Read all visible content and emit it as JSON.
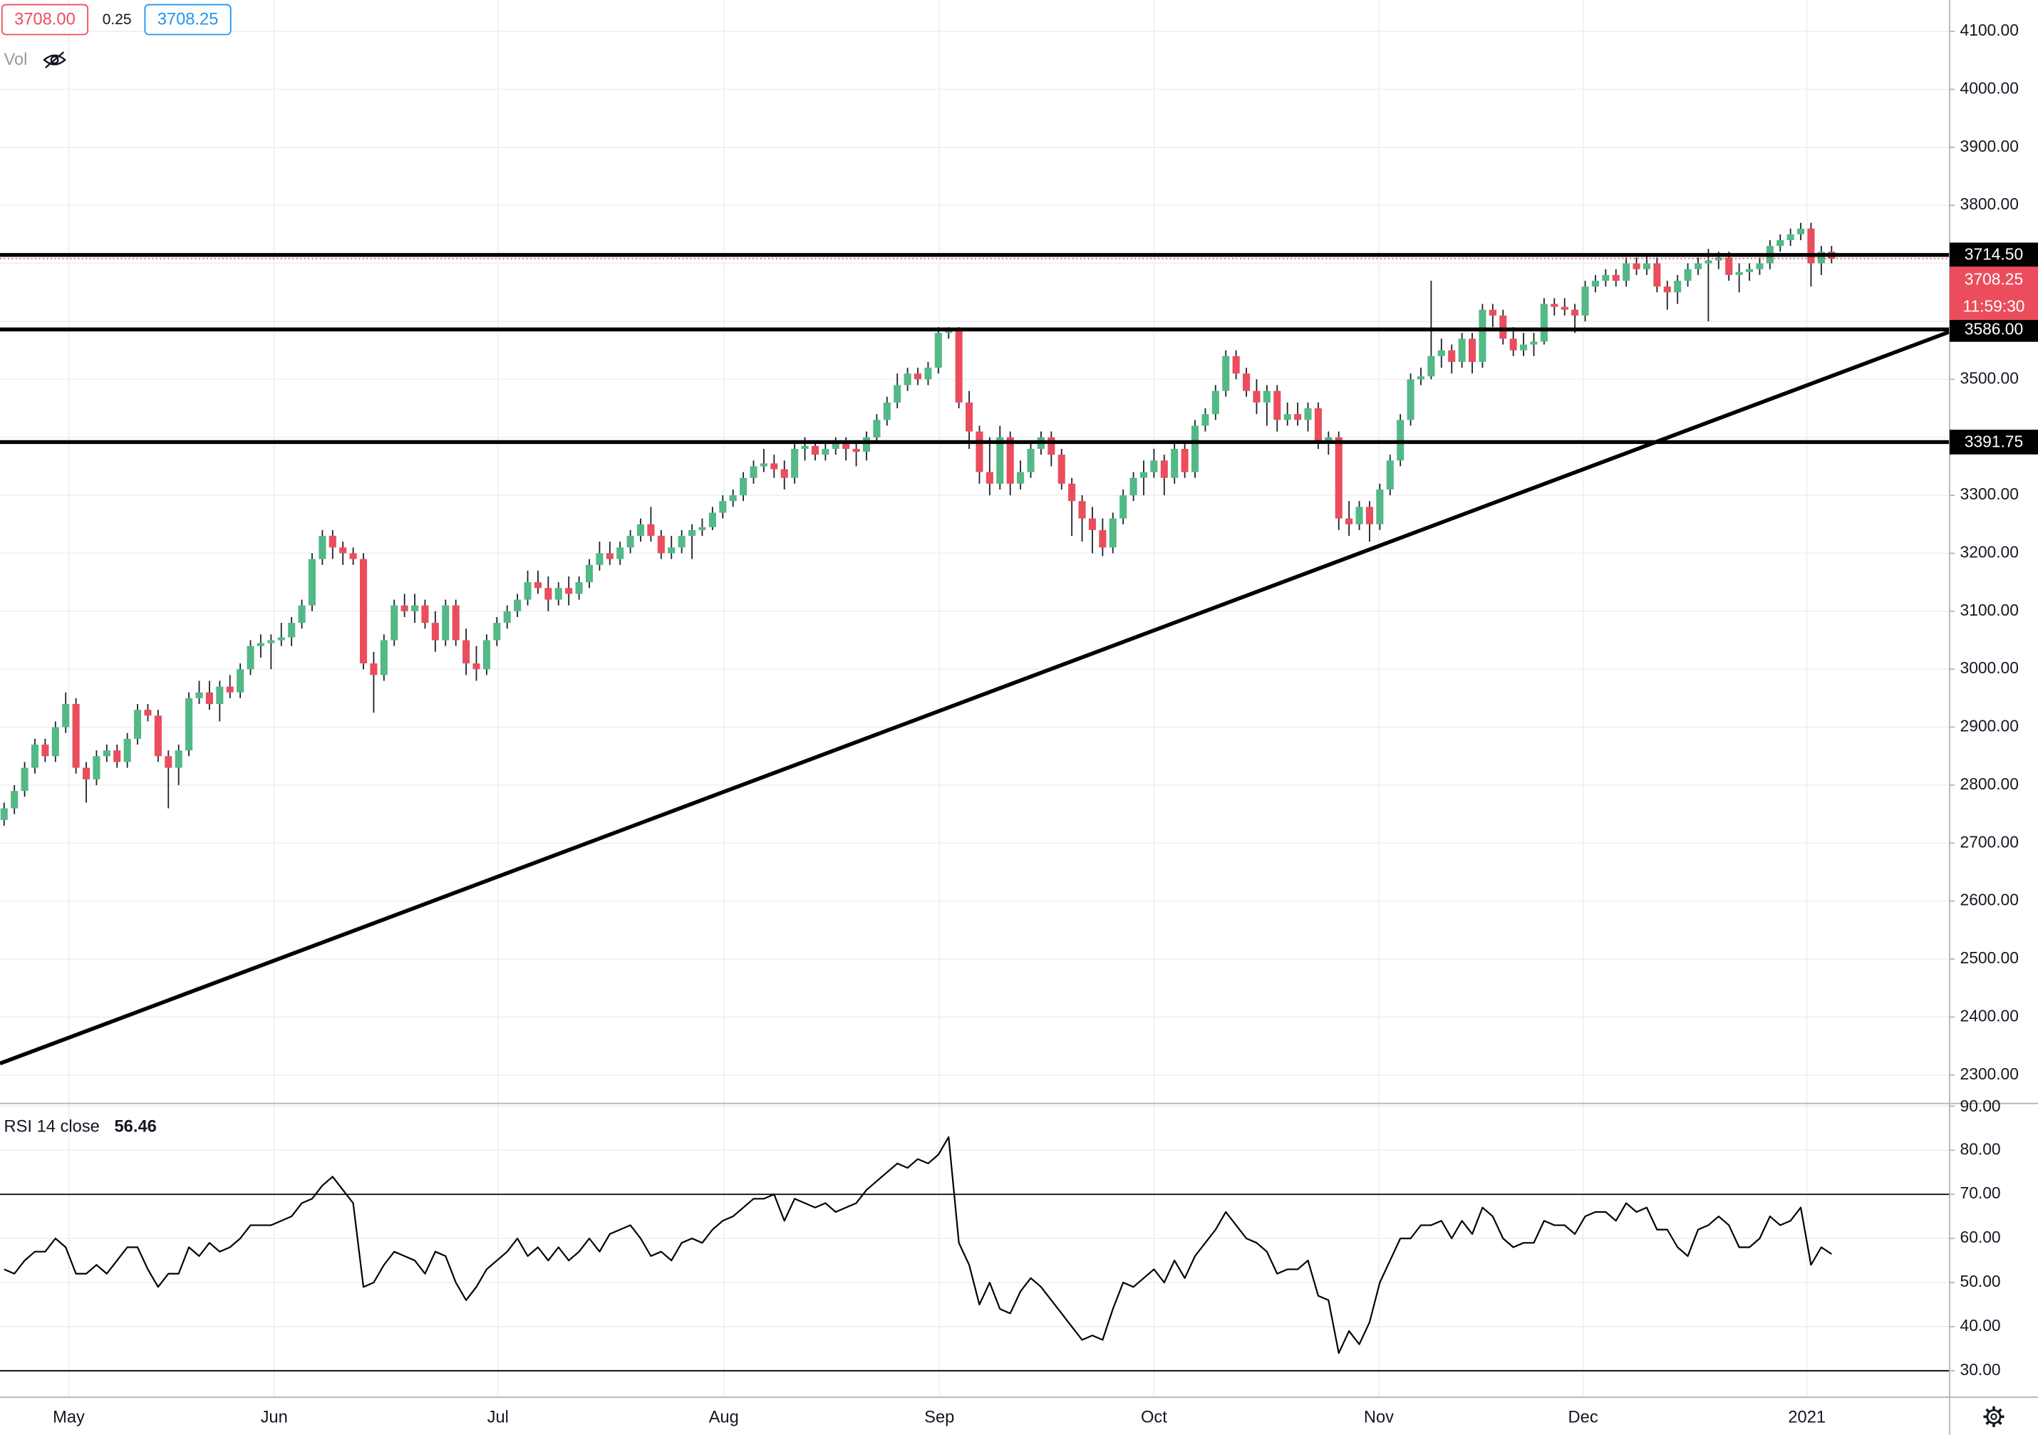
{
  "header": {
    "last": "3708.00",
    "spread": "0.25",
    "ask": "3708.25",
    "volume_label": "Vol"
  },
  "chart_data": [
    {
      "type": "candlestick",
      "xlim": [
        -0.4,
        189.5
      ],
      "xticks": [
        {
          "value": 6.3,
          "label": "May"
        },
        {
          "value": 26.3,
          "label": "Jun"
        },
        {
          "value": 48.1,
          "label": "Jul"
        },
        {
          "value": 70.1,
          "label": "Aug"
        },
        {
          "value": 91.1,
          "label": "Sep"
        },
        {
          "value": 112,
          "label": "Oct"
        },
        {
          "value": 133.9,
          "label": "Nov"
        },
        {
          "value": 153.8,
          "label": "Dec"
        },
        {
          "value": 175.6,
          "label": "2021"
        }
      ],
      "ylim": [
        2251,
        4154
      ],
      "yticks": [
        {
          "value": 2300,
          "label": "2300.00"
        },
        {
          "value": 2400,
          "label": "2400.00"
        },
        {
          "value": 2500,
          "label": "2500.00"
        },
        {
          "value": 2600,
          "label": "2600.00"
        },
        {
          "value": 2700,
          "label": "2700.00"
        },
        {
          "value": 2800,
          "label": "2800.00"
        },
        {
          "value": 2900,
          "label": "2900.00"
        },
        {
          "value": 3000,
          "label": "3000.00"
        },
        {
          "value": 3100,
          "label": "3100.00"
        },
        {
          "value": 3200,
          "label": "3200.00"
        },
        {
          "value": 3300,
          "label": "3300.00"
        },
        {
          "value": 3400,
          "label": "3400.00"
        },
        {
          "value": 3500,
          "label": "3500.00"
        },
        {
          "value": 3600,
          "label": "3600.00"
        },
        {
          "value": 3700,
          "label": "3700.00"
        },
        {
          "value": 3800,
          "label": "3800.00"
        },
        {
          "value": 3900,
          "label": "3900.00"
        },
        {
          "value": 4000,
          "label": "4000.00"
        },
        {
          "value": 4100,
          "label": "4100.00"
        }
      ],
      "grid": true,
      "up_color": "#53b987",
      "down_color": "#eb4d5c",
      "open": [
        2740,
        2760,
        2790,
        2830,
        2870,
        2850,
        2900,
        2940,
        2830,
        2810,
        2850,
        2860,
        2840,
        2880,
        2930,
        2920,
        2850,
        2830,
        2860,
        2950,
        2960,
        2940,
        2970,
        2960,
        3000,
        3040,
        3045,
        3050,
        3055,
        3080,
        3110,
        3190,
        3230,
        3210,
        3200,
        3190,
        3010,
        2990,
        3050,
        3110,
        3100,
        3110,
        3080,
        3050,
        3110,
        3050,
        3010,
        3000,
        3050,
        3080,
        3100,
        3120,
        3150,
        3140,
        3120,
        3140,
        3130,
        3150,
        3180,
        3200,
        3190,
        3210,
        3230,
        3250,
        3230,
        3200,
        3210,
        3230,
        3240,
        3245,
        3270,
        3290,
        3300,
        3330,
        3350,
        3355,
        3345,
        3330,
        3380,
        3385,
        3370,
        3380,
        3390,
        3380,
        3375,
        3400,
        3430,
        3460,
        3490,
        3510,
        3500,
        3520,
        3580,
        3585,
        3460,
        3410,
        3340,
        3320,
        3400,
        3320,
        3340,
        3380,
        3400,
        3370,
        3320,
        3290,
        3260,
        3240,
        3210,
        3260,
        3300,
        3330,
        3340,
        3360,
        3330,
        3380,
        3340,
        3420,
        3440,
        3480,
        3540,
        3510,
        3480,
        3460,
        3480,
        3430,
        3440,
        3430,
        3450,
        3390,
        3400,
        3260,
        3250,
        3280,
        3250,
        3310,
        3360,
        3430,
        3500,
        3505,
        3540,
        3550,
        3530,
        3570,
        3530,
        3620,
        3610,
        3570,
        3550,
        3560,
        3565,
        3630,
        3625,
        3620,
        3610,
        3660,
        3670,
        3680,
        3670,
        3700,
        3690,
        3700,
        3660,
        3650,
        3670,
        3690,
        3700,
        3705,
        3710,
        3680,
        3685,
        3690,
        3700,
        3730,
        3740,
        3750,
        3760,
        3700,
        3720
      ],
      "high": [
        2770,
        2800,
        2840,
        2880,
        2880,
        2910,
        2960,
        2950,
        2840,
        2860,
        2870,
        2870,
        2890,
        2940,
        2940,
        2930,
        2860,
        2870,
        2960,
        2980,
        2980,
        2980,
        2990,
        3010,
        3050,
        3060,
        3060,
        3080,
        3090,
        3120,
        3200,
        3240,
        3240,
        3220,
        3210,
        3200,
        3030,
        3060,
        3120,
        3130,
        3130,
        3120,
        3100,
        3120,
        3120,
        3070,
        3040,
        3060,
        3090,
        3110,
        3130,
        3170,
        3170,
        3160,
        3150,
        3160,
        3160,
        3190,
        3220,
        3220,
        3220,
        3240,
        3260,
        3280,
        3240,
        3230,
        3240,
        3250,
        3260,
        3280,
        3300,
        3310,
        3340,
        3360,
        3380,
        3370,
        3360,
        3390,
        3400,
        3390,
        3390,
        3400,
        3400,
        3390,
        3410,
        3440,
        3470,
        3510,
        3520,
        3520,
        3530,
        3590,
        3590,
        3590,
        3480,
        3420,
        3400,
        3420,
        3410,
        3360,
        3390,
        3410,
        3410,
        3380,
        3330,
        3300,
        3280,
        3260,
        3270,
        3310,
        3340,
        3360,
        3380,
        3370,
        3390,
        3390,
        3430,
        3450,
        3490,
        3550,
        3550,
        3520,
        3500,
        3490,
        3490,
        3460,
        3460,
        3460,
        3460,
        3410,
        3410,
        3290,
        3290,
        3290,
        3320,
        3370,
        3440,
        3510,
        3520,
        3670,
        3570,
        3560,
        3580,
        3580,
        3630,
        3630,
        3620,
        3590,
        3580,
        3580,
        3640,
        3640,
        3640,
        3630,
        3670,
        3680,
        3690,
        3690,
        3710,
        3710,
        3715,
        3710,
        3670,
        3680,
        3700,
        3710,
        3725,
        3720,
        3720,
        3700,
        3700,
        3710,
        3740,
        3750,
        3760,
        3770,
        3770,
        3730,
        3730
      ],
      "low": [
        2730,
        2750,
        2780,
        2820,
        2840,
        2840,
        2890,
        2820,
        2770,
        2800,
        2840,
        2830,
        2830,
        2870,
        2910,
        2840,
        2760,
        2800,
        2850,
        2940,
        2930,
        2910,
        2950,
        2950,
        2990,
        3020,
        3000,
        3040,
        3040,
        3070,
        3100,
        3180,
        3190,
        3180,
        3180,
        3000,
        2925,
        2980,
        3040,
        3090,
        3080,
        3070,
        3030,
        3040,
        3040,
        2990,
        2980,
        2990,
        3040,
        3070,
        3090,
        3110,
        3130,
        3100,
        3110,
        3110,
        3120,
        3140,
        3170,
        3180,
        3180,
        3200,
        3220,
        3220,
        3190,
        3190,
        3200,
        3190,
        3230,
        3240,
        3260,
        3280,
        3290,
        3320,
        3340,
        3330,
        3310,
        3320,
        3360,
        3360,
        3360,
        3370,
        3360,
        3350,
        3360,
        3390,
        3420,
        3450,
        3480,
        3490,
        3490,
        3510,
        3570,
        3450,
        3380,
        3320,
        3300,
        3310,
        3300,
        3310,
        3330,
        3370,
        3350,
        3310,
        3230,
        3220,
        3200,
        3195,
        3200,
        3250,
        3290,
        3300,
        3330,
        3300,
        3320,
        3330,
        3330,
        3410,
        3430,
        3470,
        3500,
        3470,
        3440,
        3420,
        3410,
        3420,
        3420,
        3410,
        3380,
        3370,
        3240,
        3230,
        3240,
        3220,
        3240,
        3300,
        3350,
        3420,
        3490,
        3500,
        3520,
        3510,
        3520,
        3510,
        3520,
        3590,
        3560,
        3540,
        3540,
        3540,
        3560,
        3610,
        3610,
        3580,
        3600,
        3650,
        3660,
        3660,
        3660,
        3680,
        3680,
        3650,
        3620,
        3630,
        3660,
        3680,
        3600,
        3690,
        3670,
        3650,
        3670,
        3680,
        3690,
        3720,
        3730,
        3740,
        3660,
        3680,
        3700
      ],
      "close": [
        2760,
        2790,
        2830,
        2870,
        2850,
        2900,
        2940,
        2830,
        2810,
        2850,
        2860,
        2840,
        2880,
        2930,
        2920,
        2850,
        2830,
        2860,
        2950,
        2960,
        2940,
        2970,
        2960,
        3000,
        3040,
        3045,
        3050,
        3055,
        3080,
        3110,
        3190,
        3230,
        3210,
        3200,
        3190,
        3010,
        2990,
        3050,
        3110,
        3100,
        3110,
        3080,
        3050,
        3110,
        3050,
        3010,
        3000,
        3050,
        3080,
        3100,
        3120,
        3150,
        3140,
        3120,
        3140,
        3130,
        3150,
        3180,
        3200,
        3190,
        3210,
        3230,
        3250,
        3230,
        3200,
        3210,
        3230,
        3240,
        3245,
        3270,
        3290,
        3300,
        3330,
        3350,
        3355,
        3345,
        3330,
        3380,
        3385,
        3370,
        3380,
        3390,
        3380,
        3375,
        3400,
        3430,
        3460,
        3490,
        3510,
        3500,
        3520,
        3580,
        3585,
        3460,
        3410,
        3340,
        3320,
        3400,
        3320,
        3340,
        3380,
        3400,
        3370,
        3320,
        3290,
        3260,
        3240,
        3210,
        3260,
        3300,
        3330,
        3340,
        3360,
        3330,
        3380,
        3340,
        3420,
        3440,
        3480,
        3540,
        3510,
        3480,
        3460,
        3480,
        3430,
        3440,
        3430,
        3450,
        3390,
        3400,
        3260,
        3250,
        3280,
        3250,
        3310,
        3360,
        3430,
        3500,
        3505,
        3540,
        3550,
        3530,
        3570,
        3530,
        3620,
        3610,
        3570,
        3550,
        3560,
        3565,
        3630,
        3625,
        3620,
        3610,
        3660,
        3670,
        3680,
        3670,
        3700,
        3690,
        3700,
        3660,
        3650,
        3670,
        3690,
        3700,
        3705,
        3710,
        3680,
        3685,
        3690,
        3700,
        3730,
        3740,
        3750,
        3760,
        3700,
        3720,
        3708.25
      ],
      "levels": [
        {
          "value": 3714.5,
          "label": "3714.50"
        },
        {
          "value": 3586,
          "label": "3586.00"
        },
        {
          "value": 3391.75,
          "label": "3391.75"
        }
      ],
      "trendline": {
        "x": [
          -0.4,
          189.5
        ],
        "y": [
          2320,
          3582
        ]
      },
      "countdown": "11:59:30"
    },
    {
      "type": "line",
      "title": "RSI 14 close",
      "color": "#000000",
      "ylim": [
        24,
        90.6
      ],
      "yticks": [
        {
          "value": 30,
          "label": "30.00"
        },
        {
          "value": 40,
          "label": "40.00"
        },
        {
          "value": 50,
          "label": "50.00"
        },
        {
          "value": 60,
          "label": "60.00"
        },
        {
          "value": 70,
          "label": "70.00"
        },
        {
          "value": 80,
          "label": "80.00"
        },
        {
          "value": 90,
          "label": "90.00"
        }
      ],
      "levels": [
        70,
        30
      ],
      "grid": true,
      "values": [
        53,
        52,
        55,
        57,
        57,
        60,
        58,
        52,
        52,
        54,
        52,
        55,
        58,
        58,
        53,
        49,
        52,
        52,
        58,
        56,
        59,
        57,
        58,
        60,
        63,
        63,
        63,
        64,
        65,
        68,
        69,
        72,
        74,
        71,
        68,
        49,
        50,
        54,
        57,
        56,
        55,
        52,
        57,
        56,
        50,
        46,
        49,
        53,
        55,
        57,
        60,
        56,
        58,
        55,
        58,
        55,
        57,
        60,
        57,
        61,
        62,
        63,
        60,
        56,
        57,
        55,
        59,
        60,
        59,
        62,
        64,
        65,
        67,
        69,
        69,
        70,
        64,
        69,
        68,
        67,
        68,
        66,
        67,
        68,
        71,
        73,
        75,
        77,
        76,
        78,
        77,
        79,
        83,
        59,
        54,
        45,
        50,
        44,
        43,
        48,
        51,
        49,
        46,
        43,
        40,
        37,
        38,
        37,
        44,
        50,
        49,
        51,
        53,
        50,
        55,
        51,
        56,
        59,
        62,
        66,
        63,
        60,
        59,
        57,
        52,
        53,
        53,
        55,
        47,
        46,
        34,
        39,
        36,
        41,
        50,
        55,
        60,
        60,
        63,
        63,
        64,
        60,
        64,
        61,
        67,
        65,
        60,
        58,
        59,
        59,
        64,
        63,
        63,
        61,
        65,
        66,
        66,
        64,
        68,
        66,
        67,
        62,
        62,
        58,
        56,
        62,
        63,
        65,
        63,
        58,
        58,
        60,
        65,
        63,
        64,
        67,
        54,
        58,
        56.46
      ]
    }
  ]
}
